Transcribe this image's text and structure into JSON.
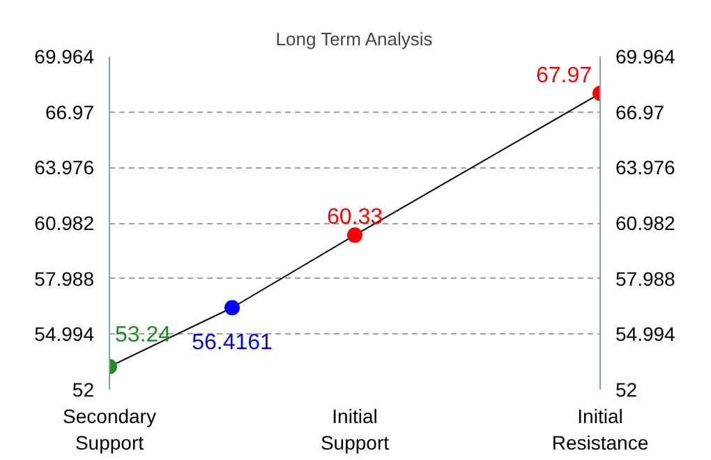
{
  "chart_data": {
    "type": "line",
    "title": "Long Term Analysis",
    "categories": [
      "Secondary Support",
      null,
      "Initial Support",
      null,
      "Initial Resistance"
    ],
    "series": [
      {
        "color": "#000000",
        "values": [
          53.24,
          56.4161,
          60.33,
          null,
          67.97
        ],
        "colors": [
          "#228b22",
          "#0000ff",
          "#ff0000",
          null,
          "#ff0000"
        ],
        "value_labels": [
          "53.24",
          "56.4161",
          "60.33",
          null,
          "67.97"
        ]
      }
    ],
    "ylim": [
      52,
      69.964
    ],
    "yticks": [
      52,
      54.994,
      57.988,
      60.982,
      63.976,
      66.97,
      69.964
    ],
    "y2lim": [
      52,
      69.964
    ],
    "y2ticks": [
      52,
      54.994,
      57.988,
      60.982,
      63.976,
      66.97,
      69.964
    ],
    "grid": "y",
    "marker": "circle",
    "line_style": "solid"
  }
}
